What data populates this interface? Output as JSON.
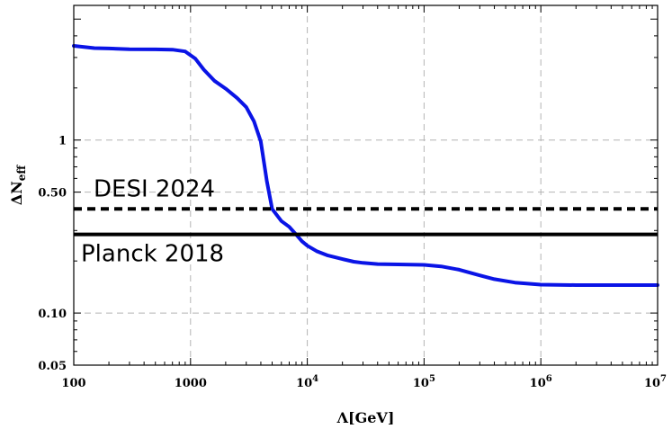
{
  "chart_data": {
    "type": "line",
    "xscale": "log",
    "yscale": "log",
    "xlim": [
      100,
      10000000
    ],
    "ylim": [
      0.05,
      6
    ],
    "grid": true,
    "grid_style": "dashed",
    "xlabel": "Λ[GeV]",
    "ylabel_base": "ΔN",
    "ylabel_sub": "eff",
    "x_ticks": [
      {
        "value": 100,
        "base": "100",
        "exp": ""
      },
      {
        "value": 1000,
        "base": "1000",
        "exp": ""
      },
      {
        "value": 10000,
        "base": "10",
        "exp": "4"
      },
      {
        "value": 100000,
        "base": "10",
        "exp": "5"
      },
      {
        "value": 1000000,
        "base": "10",
        "exp": "6"
      },
      {
        "value": 10000000,
        "base": "10",
        "exp": "7"
      }
    ],
    "y_ticks": [
      {
        "value": 0.05,
        "label": "0.05"
      },
      {
        "value": 0.1,
        "label": "0.10"
      },
      {
        "value": 0.5,
        "label": "0.50"
      },
      {
        "value": 1,
        "label": "1"
      }
    ],
    "series": [
      {
        "color": "#0a14e6",
        "x": [
          100,
          150,
          200,
          300,
          500,
          700,
          900,
          1100,
          1300,
          1600,
          2000,
          2500,
          3000,
          3500,
          4000,
          4500,
          5000,
          6000,
          7000,
          8000,
          9000,
          10000,
          12000,
          15000,
          20000,
          25000,
          30000,
          40000,
          60000,
          100000,
          140000,
          200000,
          300000,
          400000,
          600000,
          1000000,
          2000000,
          5000000,
          10000000
        ],
        "y": [
          3.5,
          3.4,
          3.38,
          3.35,
          3.34,
          3.33,
          3.25,
          2.95,
          2.55,
          2.2,
          1.98,
          1.75,
          1.55,
          1.28,
          0.98,
          0.58,
          0.4,
          0.34,
          0.315,
          0.285,
          0.26,
          0.245,
          0.228,
          0.215,
          0.205,
          0.198,
          0.195,
          0.192,
          0.191,
          0.19,
          0.186,
          0.178,
          0.165,
          0.157,
          0.15,
          0.146,
          0.145,
          0.145,
          0.145
        ]
      }
    ],
    "reference_lines": [
      {
        "label": "DESI 2024",
        "y": 0.4,
        "style": "dashed",
        "color": "#000000"
      },
      {
        "label": "Planck 2018",
        "y": 0.285,
        "style": "solid",
        "color": "#000000"
      }
    ]
  }
}
